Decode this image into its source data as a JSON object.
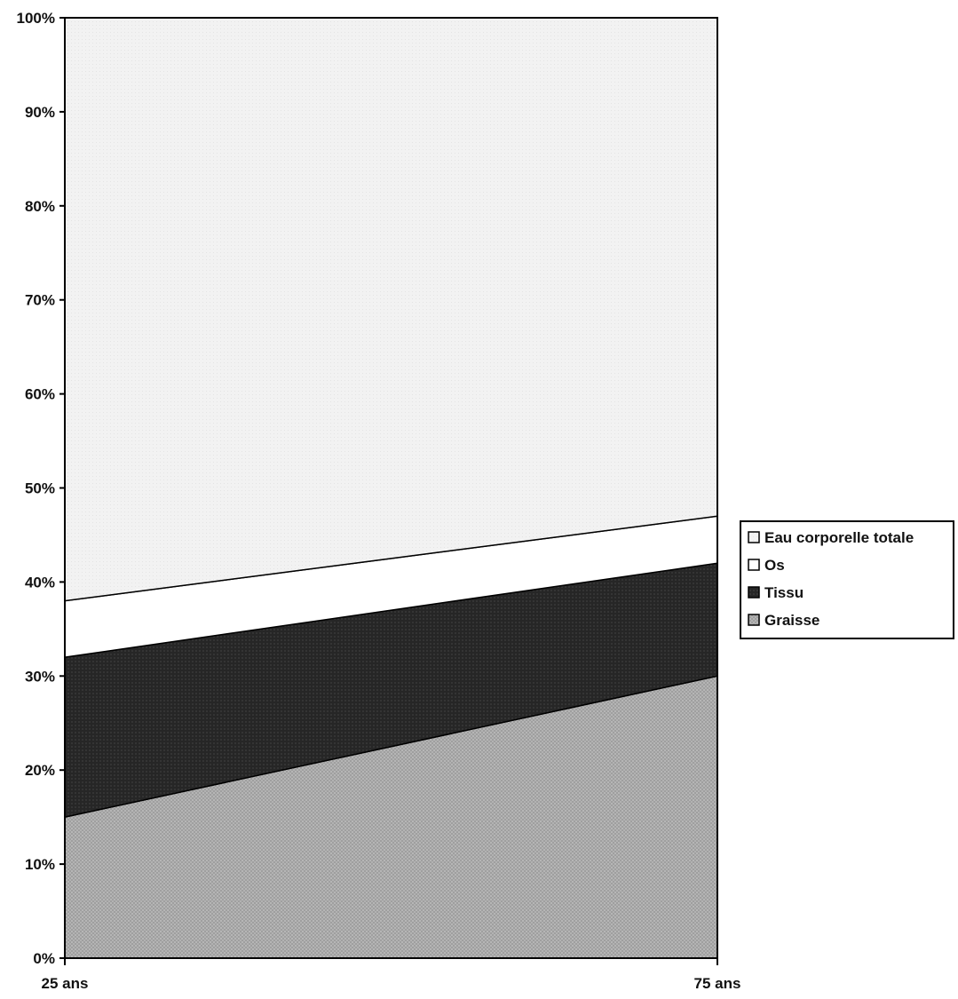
{
  "chart_data": {
    "type": "area",
    "stacking": "percent",
    "categories": [
      "25 ans",
      "75 ans"
    ],
    "series": [
      {
        "name": "Graisse",
        "values": [
          15,
          30
        ],
        "color": "#a8a8a8"
      },
      {
        "name": "Tissu",
        "values": [
          17,
          12
        ],
        "color": "#2b2b2b"
      },
      {
        "name": "Os",
        "values": [
          6,
          5
        ],
        "color": "#ffffff"
      },
      {
        "name": "Eau corporelle totale",
        "values": [
          62,
          53
        ],
        "color": "#f0f0f0"
      }
    ],
    "legend_order": [
      "Eau corporelle totale",
      "Os",
      "Tissu",
      "Graisse"
    ],
    "yticks": [
      "0%",
      "10%",
      "20%",
      "30%",
      "40%",
      "50%",
      "60%",
      "70%",
      "80%",
      "90%",
      "100%"
    ],
    "ylim": [
      0,
      100
    ],
    "legend_position": "right",
    "grid": false
  }
}
